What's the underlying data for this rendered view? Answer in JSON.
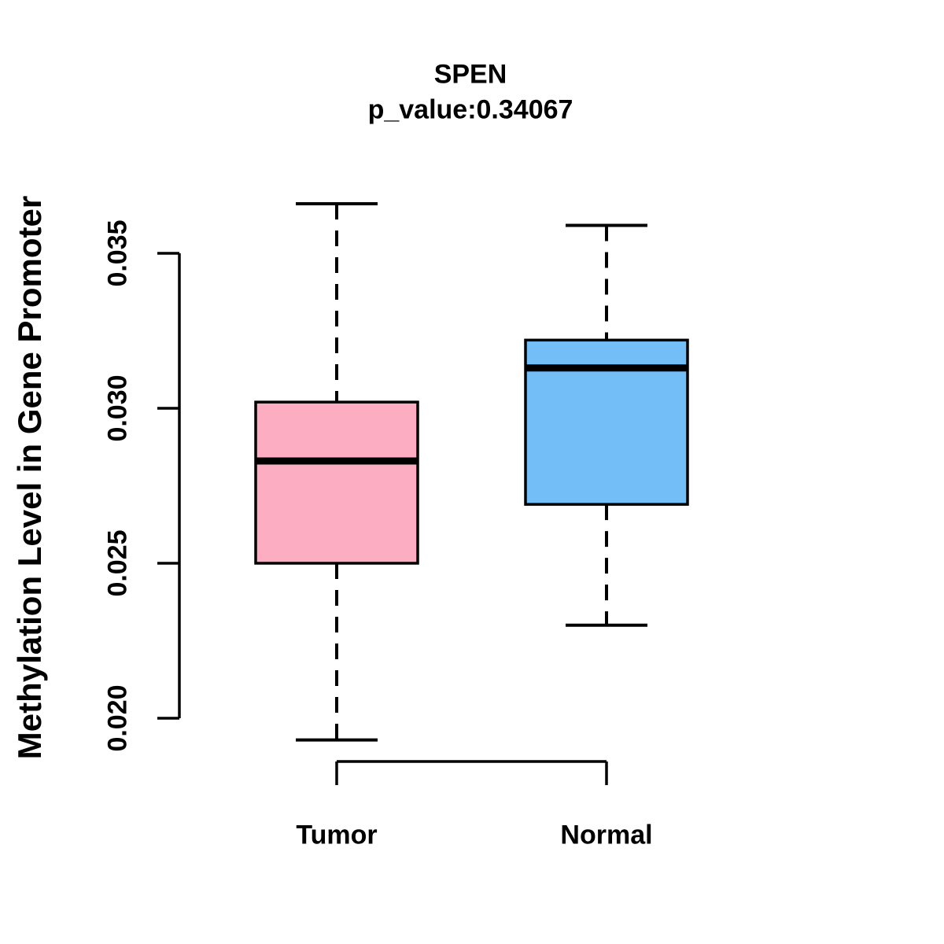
{
  "title": "SPEN",
  "subtitle": "p_value:0.34067",
  "chart_data": {
    "type": "boxplot",
    "title": "SPEN",
    "subtitle": "p_value:0.34067",
    "xlabel": "",
    "ylabel": "Methylation Level in Gene Promoter",
    "ylim": [
      0.019,
      0.037
    ],
    "yticks": [
      0.02,
      0.025,
      0.03,
      0.035
    ],
    "ytick_labels": [
      "0.020",
      "0.025",
      "0.030",
      "0.035"
    ],
    "categories": [
      "Tumor",
      "Normal"
    ],
    "grid": false,
    "legend": "none",
    "groups": [
      {
        "label": "Tumor",
        "fill_color": "#FCADC1",
        "whisker_low": 0.0193,
        "q1": 0.025,
        "median": 0.0283,
        "q3": 0.0302,
        "whisker_high": 0.0366
      },
      {
        "label": "Normal",
        "fill_color": "#74BEF8",
        "whisker_low": 0.023,
        "q1": 0.0269,
        "median": 0.0313,
        "q3": 0.0322,
        "whisker_high": 0.0359
      }
    ]
  },
  "colors": {
    "stroke": "#000000",
    "background": "#FFFFFF",
    "tumor_fill": "#FCADC1",
    "normal_fill": "#74BEF8"
  }
}
